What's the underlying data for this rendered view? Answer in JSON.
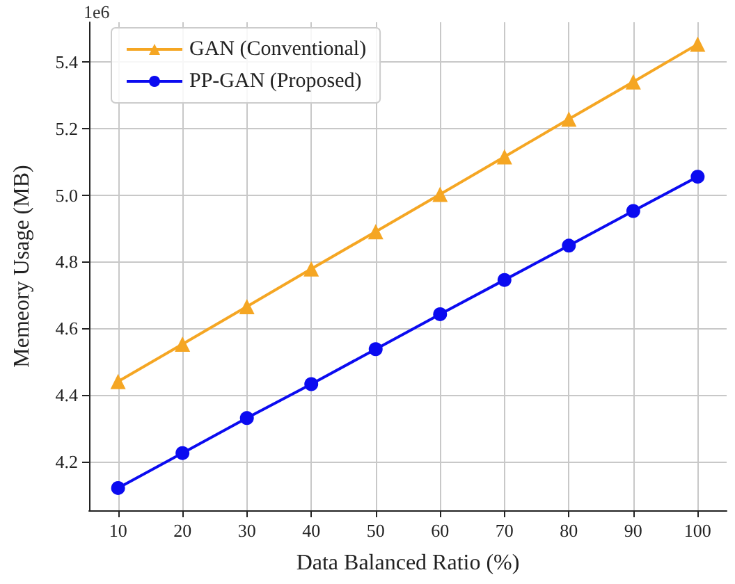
{
  "chart_data": {
    "type": "line",
    "xlabel": "Data Balanced Ratio (%)",
    "ylabel": "Memeory Usage (MB)",
    "annotations": [
      "1e6"
    ],
    "x": [
      10,
      20,
      30,
      40,
      50,
      60,
      70,
      80,
      90,
      100
    ],
    "series": [
      {
        "name": "GAN (Conventional)",
        "color": "#f5a623",
        "marker": "triangle",
        "values": [
          4.44,
          4.552,
          4.665,
          4.778,
          4.89,
          5.002,
          5.115,
          5.228,
          5.34,
          5.453
        ]
      },
      {
        "name": "PP-GAN (Proposed)",
        "color": "#0b0bf0",
        "marker": "circle",
        "values": [
          4.12,
          4.225,
          4.33,
          4.432,
          4.537,
          4.642,
          4.745,
          4.848,
          4.952,
          5.055
        ]
      }
    ],
    "xlim": [
      5.5,
      104.5
    ],
    "xticks": [
      10,
      20,
      30,
      40,
      50,
      60,
      70,
      80,
      90,
      100
    ],
    "ylim": [
      4.053,
      5.519
    ],
    "yticks": [
      {
        "value": 4.2,
        "label": "4.2"
      },
      {
        "value": 4.4,
        "label": "4.4"
      },
      {
        "value": 4.6,
        "label": "4.6"
      },
      {
        "value": 4.8,
        "label": "4.8"
      },
      {
        "value": 5.0,
        "label": "5.0"
      },
      {
        "value": 5.2,
        "label": "5.2"
      },
      {
        "value": 5.4,
        "label": "5.4"
      }
    ],
    "grid": true,
    "legend": "top left",
    "line_style": "solid"
  }
}
